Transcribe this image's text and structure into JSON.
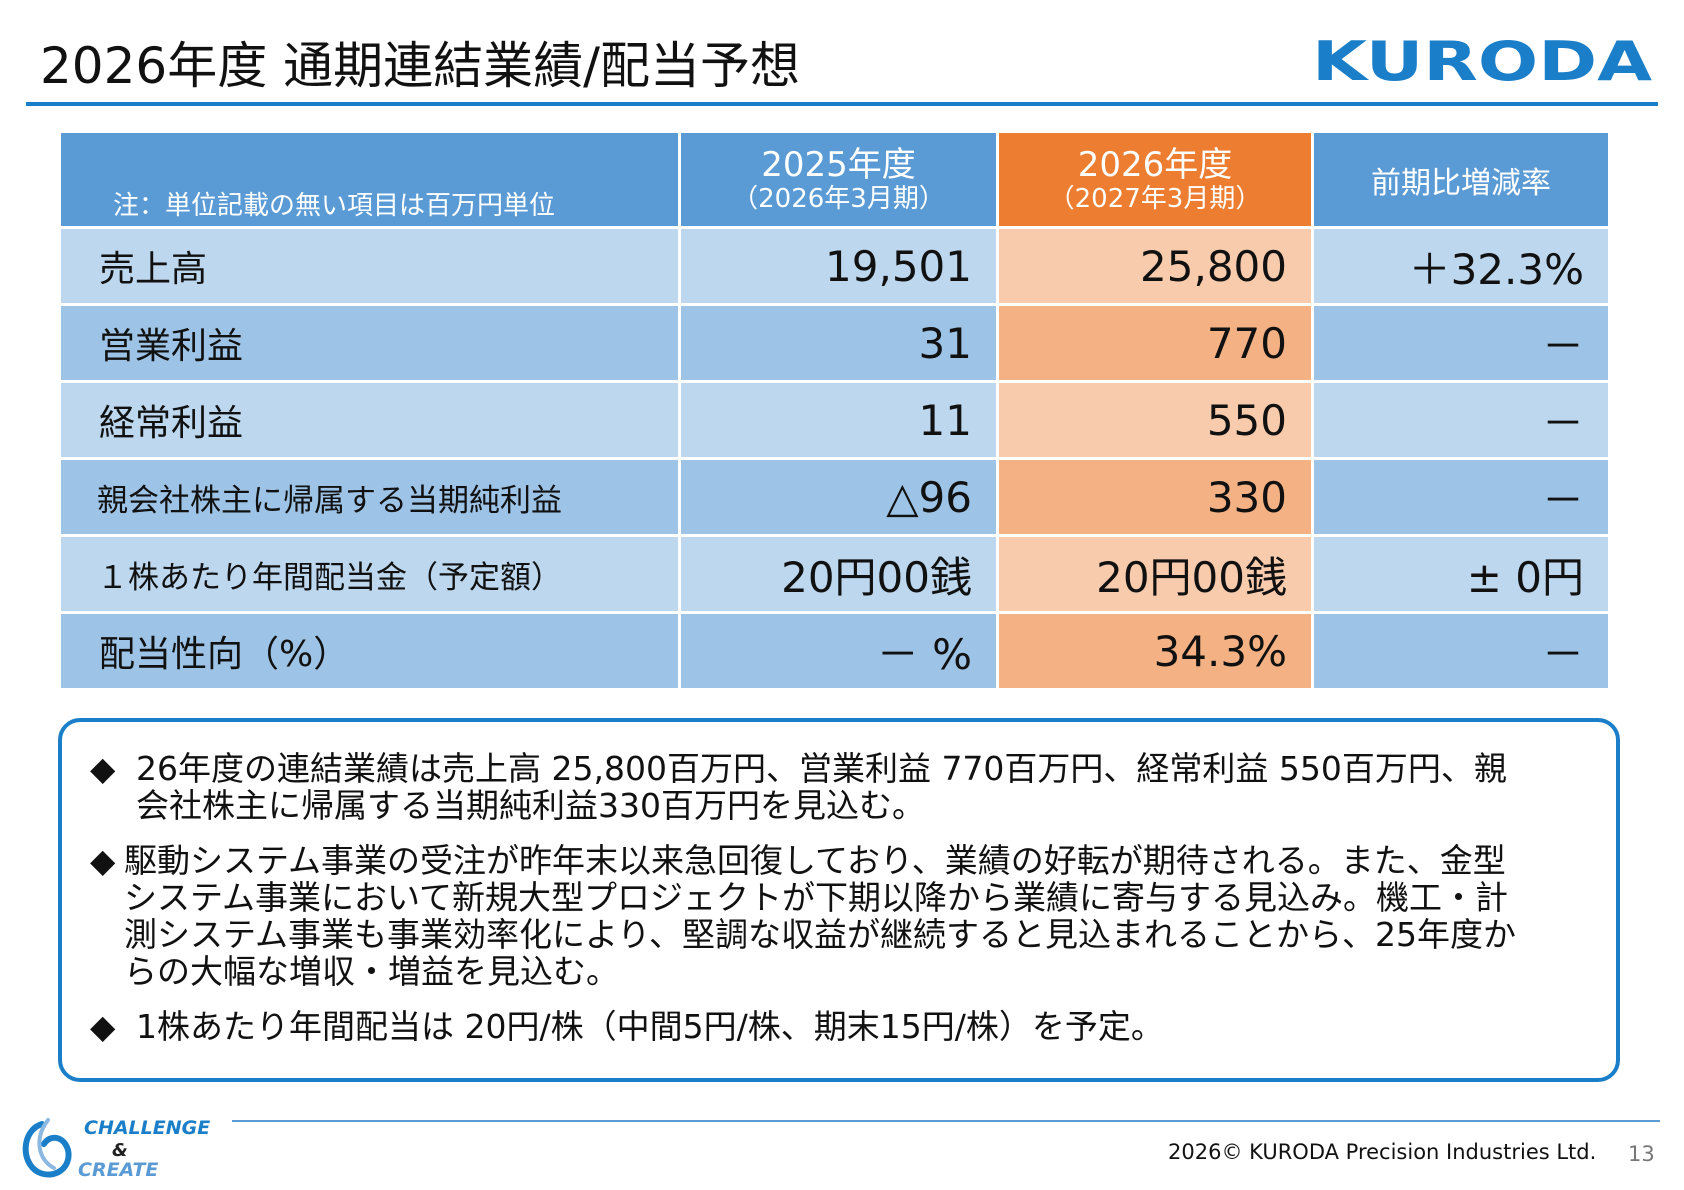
{
  "title": "2026年度 通期連結業績/配当予想",
  "logo_text": "KURODA",
  "colors": {
    "accent_blue": "#1a7fc8",
    "header_blue": "#5b9bd5",
    "header_orange": "#ed7d31",
    "row_light_blue": "#bdd7ee",
    "row_dark_blue": "#9dc3e6",
    "row_light_orange": "#f8cbad",
    "row_dark_orange": "#f4b183"
  },
  "table": {
    "note": "注：単位記載の無い項目は百万円単位",
    "col_2025_line1": "2025年度",
    "col_2025_line2": "（2026年3月期）",
    "col_2026_line1": "2026年度",
    "col_2026_line2": "（2027年3月期）",
    "col_rate": "前期比増減率",
    "rows": [
      {
        "label": "売上高",
        "fy2025": "19,501",
        "fy2026": "25,800",
        "rate": "＋32.3%"
      },
      {
        "label": "営業利益",
        "fy2025": "31",
        "fy2026": "770",
        "rate": "－"
      },
      {
        "label": "経常利益",
        "fy2025": "11",
        "fy2026": "550",
        "rate": "－"
      },
      {
        "label": "親会社株主に帰属する当期純利益",
        "fy2025": "△96",
        "fy2026": "330",
        "rate": "－"
      },
      {
        "label": "１株あたり年間配当金（予定額）",
        "fy2025": "20円00銭",
        "fy2026": "20円00銭",
        "rate": "± 0円"
      },
      {
        "label": "配当性向（%）",
        "fy2025": "－ %",
        "fy2026": "34.3%",
        "rate": "－"
      }
    ]
  },
  "notes": [
    {
      "bullet": "◆",
      "lines": [
        "26年度の連結業績は売上高 25,800百万円、営業利益 770百万円、経常利益 550百万円、親",
        "会社株主に帰属する当期純利益330百万円を見込む。"
      ]
    },
    {
      "bullet": "◆",
      "lines": [
        "駆動システム事業の受注が昨年末以来急回復しており、業績の好転が期待される。また、金型",
        "システム事業において新規大型プロジェクトが下期以降から業績に寄与する見込み。機工・計",
        "測システム事業も事業効率化により、堅調な収益が継続すると見込まれることから、25年度か",
        "らの大幅な増収・増益を見込む。"
      ]
    },
    {
      "bullet": "◆",
      "lines": [
        "1株あたり年間配当は 20円/株（中間5円/株、期末15円/株）を予定。"
      ]
    }
  ],
  "footer": {
    "logo_challenge": "CHALLENGE",
    "logo_amp": "&",
    "logo_create": "CREATE",
    "copyright": "2026© KURODA Precision Industries Ltd.",
    "page_number": "13"
  }
}
